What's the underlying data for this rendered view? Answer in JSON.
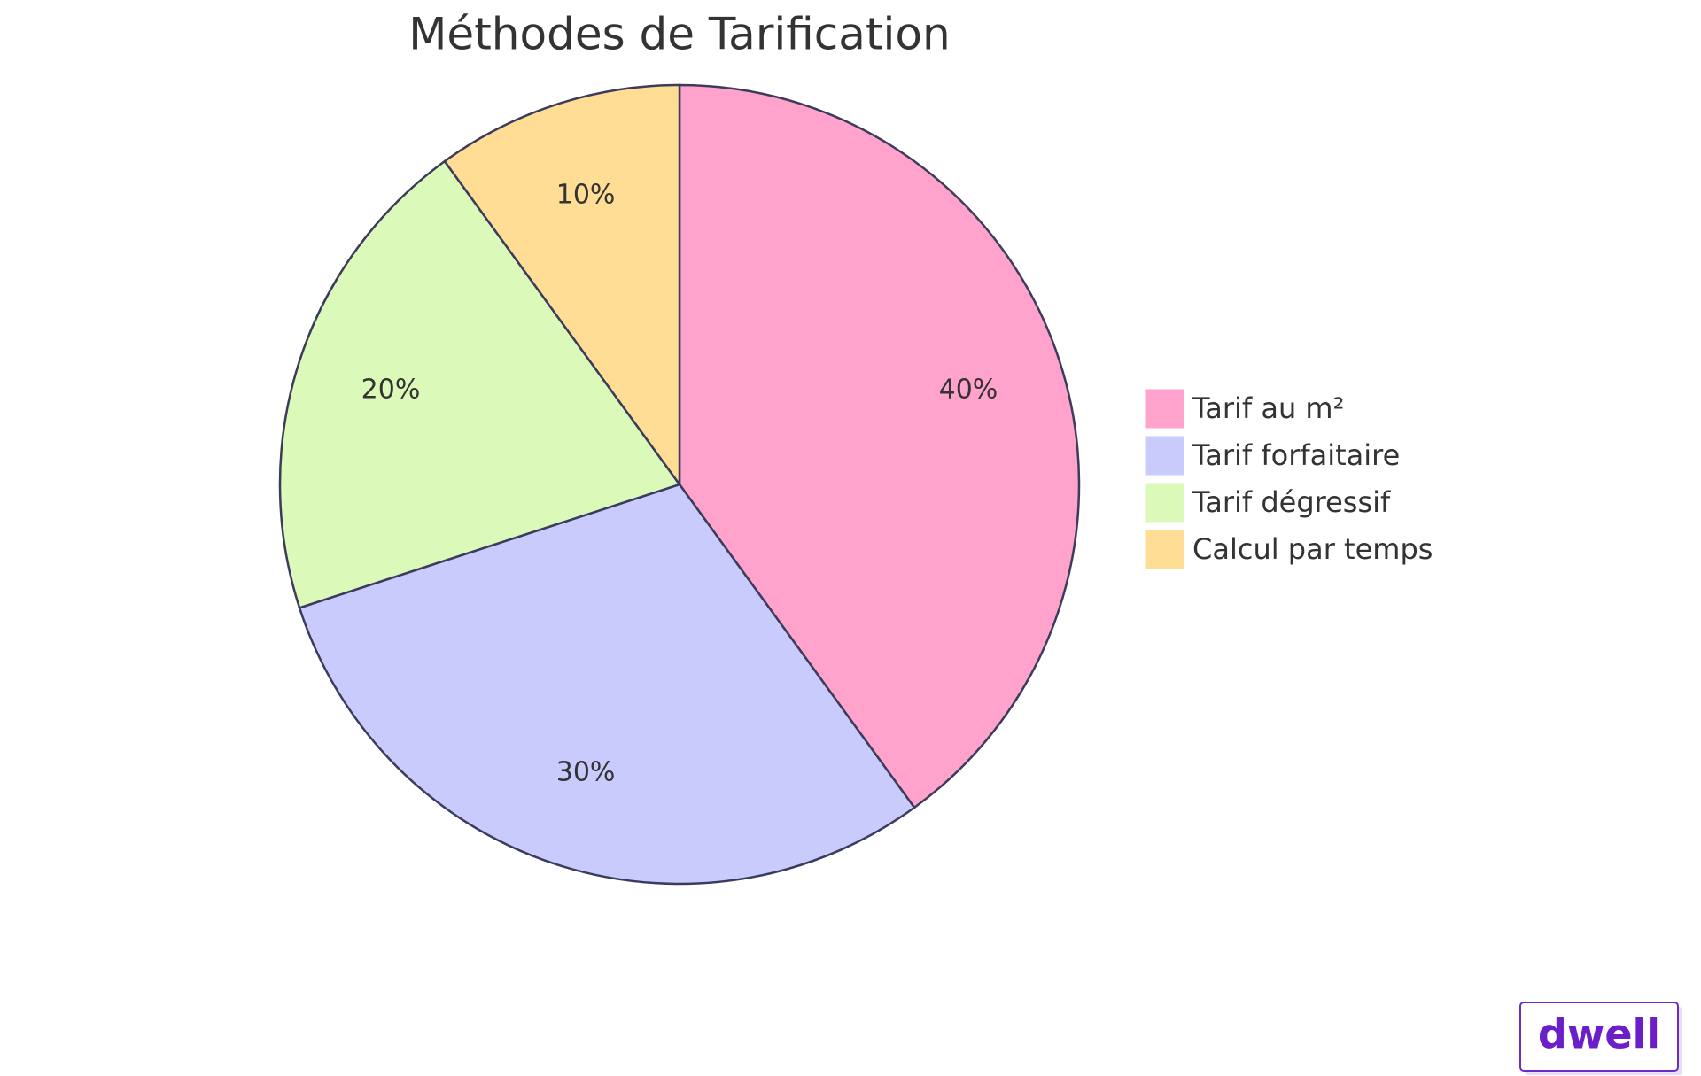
{
  "chart_data": {
    "type": "pie",
    "title": "Méthodes de Tarification",
    "categories": [
      "Tarif au m²",
      "Tarif forfaitaire",
      "Tarif dégressif",
      "Calcul par temps"
    ],
    "values": [
      40,
      30,
      20,
      10
    ],
    "value_labels": [
      "40%",
      "30%",
      "20%",
      "10%"
    ],
    "colors": [
      "#ffa3cc",
      "#cacbfd",
      "#dbf9b9",
      "#ffdd95"
    ],
    "legend": "right"
  },
  "watermark": "dwell"
}
